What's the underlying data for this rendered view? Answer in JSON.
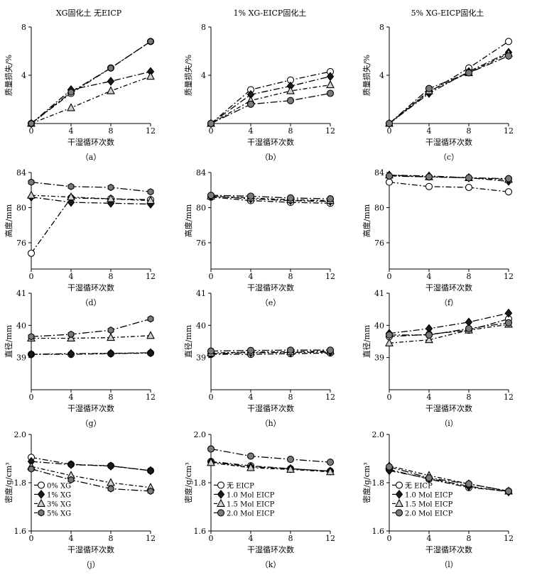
{
  "column_titles": [
    "XG固化土 无EICP",
    "1% XG-EICP固化土",
    "5% XG-EICP固化土"
  ],
  "xlabel": "干湿循环次数",
  "x_ticks": [
    0,
    4,
    8,
    12
  ],
  "styles": {
    "group1": [
      {
        "fill": "#ffffff",
        "marker": "circle"
      },
      {
        "fill": "#1a1a1a",
        "marker": "diamond"
      },
      {
        "fill": "#cfcfcf",
        "marker": "triangle"
      },
      {
        "fill": "#7a7a7a",
        "marker": "hexagon"
      }
    ],
    "group2": [
      {
        "fill": "#ffffff",
        "marker": "circle"
      },
      {
        "fill": "#1a1a1a",
        "marker": "diamond"
      },
      {
        "fill": "#cfcfcf",
        "marker": "triangle"
      },
      {
        "fill": "#7a7a7a",
        "marker": "circle"
      }
    ]
  },
  "legends": {
    "xg": [
      "0% XG",
      "1% XG",
      "3% XG",
      "5% XG"
    ],
    "eicp": [
      "无 EICP",
      "1.0 Mol EICP",
      "1.5 Mol EICP",
      "2.0 Mol EICP"
    ]
  },
  "chart_data": [
    {
      "id": "a",
      "label": "（a）",
      "type": "line",
      "ylabel": "质量损失/%",
      "ylim": [
        0,
        8
      ],
      "yticks": [
        4,
        8
      ],
      "x": [
        0,
        4,
        8,
        12
      ],
      "style": "group1",
      "series": [
        {
          "values": [
            0,
            2.5,
            4.6,
            6.8
          ]
        },
        {
          "values": [
            0,
            2.8,
            3.5,
            4.3
          ]
        },
        {
          "values": [
            0,
            1.3,
            2.7,
            3.9
          ]
        },
        {
          "values": [
            0,
            2.6,
            4.6,
            6.8
          ]
        }
      ]
    },
    {
      "id": "b",
      "label": "（b）",
      "type": "line",
      "ylabel": "质量损失/%",
      "ylim": [
        0,
        8
      ],
      "yticks": [
        4,
        8
      ],
      "x": [
        0,
        4,
        8,
        12
      ],
      "style": "group2",
      "series": [
        {
          "values": [
            0,
            2.8,
            3.6,
            4.3
          ]
        },
        {
          "values": [
            0,
            2.4,
            3.1,
            3.9
          ]
        },
        {
          "values": [
            0,
            1.9,
            2.7,
            3.2
          ]
        },
        {
          "values": [
            0,
            1.6,
            1.9,
            2.5
          ]
        }
      ]
    },
    {
      "id": "c",
      "label": "（c）",
      "type": "line",
      "ylabel": "质量损失/%",
      "ylim": [
        0,
        8
      ],
      "yticks": [
        4,
        8
      ],
      "x": [
        0,
        4,
        8,
        12
      ],
      "style": "group2",
      "series": [
        {
          "values": [
            0,
            2.6,
            4.6,
            6.8
          ]
        },
        {
          "values": [
            0,
            2.5,
            4.3,
            5.9
          ]
        },
        {
          "values": [
            0,
            2.7,
            4.2,
            5.8
          ]
        },
        {
          "values": [
            0,
            2.9,
            4.2,
            5.6
          ]
        }
      ]
    },
    {
      "id": "d",
      "label": "（d）",
      "type": "line",
      "ylabel": "高度/mm",
      "ylim": [
        73,
        84
      ],
      "yticks": [
        76,
        80,
        84
      ],
      "x": [
        0,
        4,
        8,
        12
      ],
      "style": "group1",
      "series": [
        {
          "values": [
            74.8,
            81.1,
            81.0,
            80.9
          ]
        },
        {
          "values": [
            81.2,
            80.6,
            80.5,
            80.4
          ]
        },
        {
          "values": [
            81.4,
            81.2,
            81.0,
            80.8
          ]
        },
        {
          "values": [
            82.9,
            82.4,
            82.3,
            81.8
          ]
        }
      ]
    },
    {
      "id": "e",
      "label": "（e）",
      "type": "line",
      "ylabel": "高度/mm",
      "ylim": [
        73,
        84
      ],
      "yticks": [
        76,
        80,
        84
      ],
      "x": [
        0,
        4,
        8,
        12
      ],
      "style": "group2",
      "series": [
        {
          "values": [
            81.2,
            80.8,
            80.6,
            80.5
          ]
        },
        {
          "values": [
            81.3,
            81.0,
            80.8,
            80.7
          ]
        },
        {
          "values": [
            81.3,
            81.1,
            80.9,
            80.8
          ]
        },
        {
          "values": [
            81.4,
            81.3,
            81.1,
            81.0
          ]
        }
      ]
    },
    {
      "id": "f",
      "label": "（f）",
      "type": "line",
      "ylabel": "高度/mm",
      "ylim": [
        73,
        84
      ],
      "yticks": [
        76,
        80,
        84
      ],
      "x": [
        0,
        4,
        8,
        12
      ],
      "style": "group2",
      "series": [
        {
          "values": [
            82.9,
            82.4,
            82.3,
            81.8
          ]
        },
        {
          "values": [
            83.7,
            83.6,
            83.4,
            83.0
          ]
        },
        {
          "values": [
            83.7,
            83.5,
            83.4,
            83.2
          ]
        },
        {
          "values": [
            83.6,
            83.5,
            83.4,
            83.3
          ]
        }
      ]
    },
    {
      "id": "g",
      "label": "（g）",
      "type": "line",
      "ylabel": "直径/mm",
      "ylim": [
        38,
        41
      ],
      "yticks": [
        39,
        40,
        41
      ],
      "x": [
        0,
        4,
        8,
        12
      ],
      "style": "group1",
      "series": [
        {
          "values": [
            39.1,
            39.1,
            39.12,
            39.14
          ]
        },
        {
          "values": [
            39.1,
            39.12,
            39.13,
            39.15
          ]
        },
        {
          "values": [
            39.6,
            39.6,
            39.62,
            39.68
          ]
        },
        {
          "values": [
            39.65,
            39.72,
            39.85,
            40.2
          ]
        }
      ]
    },
    {
      "id": "h",
      "label": "（h）",
      "type": "line",
      "ylabel": "直径/mm",
      "ylim": [
        38,
        41
      ],
      "yticks": [
        39,
        40,
        41
      ],
      "x": [
        0,
        4,
        8,
        12
      ],
      "style": "group2",
      "series": [
        {
          "values": [
            39.1,
            39.1,
            39.12,
            39.14
          ]
        },
        {
          "values": [
            39.12,
            39.15,
            39.16,
            39.17
          ]
        },
        {
          "values": [
            39.14,
            39.17,
            39.18,
            39.2
          ]
        },
        {
          "values": [
            39.2,
            39.22,
            39.23,
            39.23
          ]
        }
      ]
    },
    {
      "id": "i",
      "label": "（i）",
      "type": "line",
      "ylabel": "直径/mm",
      "ylim": [
        38,
        41
      ],
      "yticks": [
        39,
        40,
        41
      ],
      "x": [
        0,
        4,
        8,
        12
      ],
      "style": "group2",
      "series": [
        {
          "values": [
            39.65,
            39.72,
            39.85,
            40.2
          ]
        },
        {
          "values": [
            39.75,
            39.9,
            40.1,
            40.38
          ]
        },
        {
          "values": [
            39.45,
            39.55,
            39.85,
            40.03
          ]
        },
        {
          "values": [
            39.7,
            39.7,
            39.9,
            40.08
          ]
        }
      ]
    },
    {
      "id": "j",
      "label": "（j）",
      "type": "line",
      "ylabel": "密度/g/cm³",
      "ylim": [
        1.6,
        2.0
      ],
      "yticks": [
        1.6,
        1.8,
        2.0
      ],
      "x": [
        0,
        4,
        8,
        12
      ],
      "style": "group1",
      "legend": "xg",
      "series": [
        {
          "values": [
            1.905,
            1.876,
            1.87,
            1.85
          ]
        },
        {
          "values": [
            1.888,
            1.875,
            1.869,
            1.85
          ]
        },
        {
          "values": [
            1.867,
            1.83,
            1.8,
            1.78
          ]
        },
        {
          "values": [
            1.857,
            1.812,
            1.775,
            1.765
          ]
        }
      ]
    },
    {
      "id": "k",
      "label": "（k）",
      "type": "line",
      "ylabel": "密度/g/cm³",
      "ylim": [
        1.6,
        2.0
      ],
      "yticks": [
        1.6,
        1.8,
        2.0
      ],
      "x": [
        0,
        4,
        8,
        12
      ],
      "style": "group2",
      "legend": "eicp",
      "series": [
        {
          "values": [
            1.888,
            1.87,
            1.858,
            1.848
          ]
        },
        {
          "values": [
            1.886,
            1.866,
            1.858,
            1.848
          ]
        },
        {
          "values": [
            1.883,
            1.862,
            1.855,
            1.845
          ]
        },
        {
          "values": [
            1.94,
            1.91,
            1.897,
            1.885
          ]
        }
      ]
    },
    {
      "id": "l",
      "label": "（l）",
      "type": "line",
      "ylabel": "密度/g/cm³",
      "ylim": [
        1.6,
        2.0
      ],
      "yticks": [
        1.6,
        1.8,
        2.0
      ],
      "x": [
        0,
        4,
        8,
        12
      ],
      "style": "group2",
      "legend": "eicp",
      "series": [
        {
          "values": [
            1.855,
            1.815,
            1.78,
            1.765
          ]
        },
        {
          "values": [
            1.85,
            1.818,
            1.785,
            1.762
          ]
        },
        {
          "values": [
            1.87,
            1.83,
            1.795,
            1.765
          ]
        },
        {
          "values": [
            1.866,
            1.82,
            1.795,
            1.765
          ]
        }
      ]
    }
  ]
}
